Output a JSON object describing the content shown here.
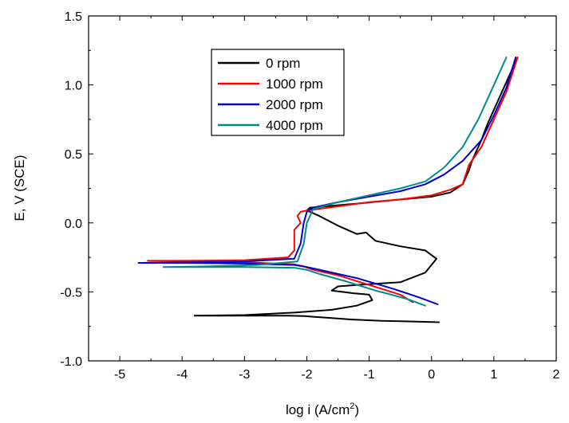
{
  "chart_data": {
    "type": "line",
    "title": "",
    "xlabel": "log i (A/cm",
    "xlabel_sup": "2",
    "xlabel_close": ")",
    "ylabel": "E, V (SCE)",
    "xlim": [
      -5.5,
      2
    ],
    "ylim": [
      -1.0,
      1.5
    ],
    "xticks": [
      -5,
      -4,
      -3,
      -2,
      -1,
      0,
      1,
      2
    ],
    "yticks": [
      -1.0,
      -0.5,
      0.0,
      0.5,
      1.0,
      1.5
    ],
    "xtick_labels": [
      "-5",
      "-4",
      "-3",
      "-2",
      "-1",
      "0",
      "1",
      "2"
    ],
    "ytick_labels": [
      "-1.0",
      "-0.5",
      "0.0",
      "0.5",
      "1.0",
      "1.5"
    ],
    "grid": false,
    "legend_position": "top-center",
    "series": [
      {
        "name": "0 rpm",
        "color": "#000000",
        "x": [
          0.12,
          -0.3,
          -0.8,
          -1.3,
          -1.6,
          -1.9,
          -2.05,
          -2.3,
          -3.0,
          -3.5,
          -3.8,
          -3.0,
          -2.2,
          -1.6,
          -1.2,
          -0.95,
          -1.0,
          -1.25,
          -1.6,
          -1.5,
          -1.2,
          -0.5,
          -0.1,
          0.08,
          -0.1,
          -0.5,
          -0.9,
          -1.0,
          -1.05,
          -1.2,
          -1.5,
          -1.8,
          -2.0,
          -1.95,
          -1.7,
          -1.2,
          -0.5,
          0.0,
          0.3,
          0.5,
          0.6,
          0.65,
          0.7,
          0.8,
          0.9,
          1.0,
          1.1,
          1.2,
          1.3,
          1.38
        ],
        "y": [
          -0.72,
          -0.715,
          -0.71,
          -0.7,
          -0.69,
          -0.68,
          -0.675,
          -0.672,
          -0.672,
          -0.672,
          -0.672,
          -0.668,
          -0.65,
          -0.63,
          -0.6,
          -0.56,
          -0.52,
          -0.51,
          -0.49,
          -0.46,
          -0.45,
          -0.43,
          -0.36,
          -0.26,
          -0.2,
          -0.17,
          -0.13,
          -0.09,
          -0.07,
          -0.08,
          -0.02,
          0.05,
          0.09,
          0.11,
          0.12,
          0.14,
          0.17,
          0.19,
          0.22,
          0.28,
          0.38,
          0.45,
          0.5,
          0.6,
          0.72,
          0.82,
          0.92,
          1.02,
          1.12,
          1.2
        ]
      },
      {
        "name": "1000 rpm",
        "color": "#ff0000",
        "x": [
          -0.3,
          -0.5,
          -1.0,
          -1.5,
          -1.9,
          -2.05,
          -2.2,
          -3.0,
          -4.0,
          -4.55,
          -4.0,
          -3.0,
          -2.3,
          -2.2,
          -2.2,
          -2.1,
          -2.15,
          -2.1,
          -2.0,
          -1.5,
          -1.0,
          -0.5,
          0.0,
          0.3,
          0.5,
          0.55,
          0.6,
          0.8,
          1.0,
          1.2,
          1.38
        ],
        "y": [
          -0.575,
          -0.52,
          -0.45,
          -0.38,
          -0.34,
          -0.315,
          -0.3,
          -0.285,
          -0.28,
          -0.275,
          -0.275,
          -0.27,
          -0.25,
          -0.2,
          -0.05,
          0.0,
          0.05,
          0.08,
          0.09,
          0.12,
          0.15,
          0.17,
          0.2,
          0.24,
          0.28,
          0.35,
          0.42,
          0.55,
          0.75,
          0.95,
          1.2
        ]
      },
      {
        "name": "2000 rpm",
        "color": "#0000cd",
        "x": [
          0.1,
          -0.2,
          -0.6,
          -1.2,
          -1.7,
          -2.0,
          -2.2,
          -3.0,
          -4.0,
          -4.7,
          -4.0,
          -3.0,
          -2.2,
          -2.1,
          -2.05,
          -2.0,
          -1.9,
          -1.5,
          -1.0,
          -0.5,
          -0.1,
          0.2,
          0.5,
          0.8,
          1.0,
          1.2,
          1.35
        ],
        "y": [
          -0.59,
          -0.54,
          -0.48,
          -0.4,
          -0.35,
          -0.32,
          -0.305,
          -0.295,
          -0.29,
          -0.29,
          -0.287,
          -0.28,
          -0.26,
          -0.15,
          0.0,
          0.08,
          0.11,
          0.15,
          0.19,
          0.23,
          0.28,
          0.35,
          0.45,
          0.6,
          0.78,
          0.98,
          1.2
        ]
      },
      {
        "name": "4000 rpm",
        "color": "#008b8b",
        "x": [
          -0.1,
          -0.4,
          -0.9,
          -1.4,
          -1.8,
          -2.0,
          -2.2,
          -3.0,
          -3.8,
          -4.3,
          -3.6,
          -2.8,
          -2.15,
          -2.05,
          -2.0,
          -1.9,
          -1.5,
          -1.0,
          -0.5,
          -0.1,
          0.2,
          0.5,
          0.75,
          0.95,
          1.1,
          1.2
        ],
        "y": [
          -0.6,
          -0.55,
          -0.49,
          -0.42,
          -0.37,
          -0.34,
          -0.325,
          -0.32,
          -0.32,
          -0.32,
          -0.315,
          -0.305,
          -0.28,
          -0.15,
          0.0,
          0.1,
          0.15,
          0.2,
          0.25,
          0.3,
          0.4,
          0.55,
          0.75,
          0.95,
          1.1,
          1.2
        ]
      }
    ]
  }
}
